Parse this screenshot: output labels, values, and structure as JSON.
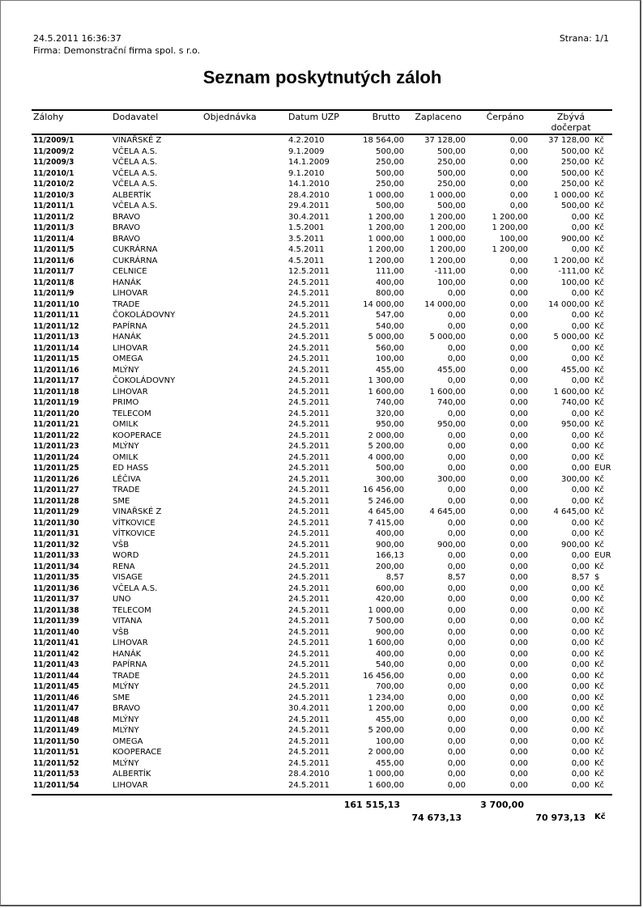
{
  "header": {
    "datetime": "24.5.2011  16:36:37",
    "company": "Firma: Demonstrační firma spol. s r.o.",
    "page": "Strana: 1/1"
  },
  "title": "Seznam poskytnutých záloh",
  "columns": {
    "zalohy": "Zálohy",
    "dodavatel": "Dodavatel",
    "objednavka": "Objednávka",
    "datum": "Datum UZP",
    "brutto": "Brutto",
    "zaplaceno": "Zaplaceno",
    "cerpano": "Čerpáno",
    "zbyva_1": "Zbývá",
    "zbyva_2": "dočerpat"
  },
  "rows": [
    [
      "11/2009/1",
      "VINAŘSKÉ Z",
      "4.2.2010",
      "18 564,00",
      "37 128,00",
      "0,00",
      "37 128,00",
      "Kč"
    ],
    [
      "11/2009/2",
      "VČELA A.S.",
      "9.1.2009",
      "500,00",
      "500,00",
      "0,00",
      "500,00",
      "Kč"
    ],
    [
      "11/2009/3",
      "VČELA A.S.",
      "14.1.2009",
      "250,00",
      "250,00",
      "0,00",
      "250,00",
      "Kč"
    ],
    [
      "11/2010/1",
      "VČELA A.S.",
      "9.1.2010",
      "500,00",
      "500,00",
      "0,00",
      "500,00",
      "Kč"
    ],
    [
      "11/2010/2",
      "VČELA A.S.",
      "14.1.2010",
      "250,00",
      "250,00",
      "0,00",
      "250,00",
      "Kč"
    ],
    [
      "11/2010/3",
      "ALBERTÍK",
      "28.4.2010",
      "1 000,00",
      "1 000,00",
      "0,00",
      "1 000,00",
      "Kč"
    ],
    [
      "11/2011/1",
      "VČELA A.S.",
      "29.4.2011",
      "500,00",
      "500,00",
      "0,00",
      "500,00",
      "Kč"
    ],
    [
      "11/2011/2",
      "BRAVO",
      "30.4.2011",
      "1 200,00",
      "1 200,00",
      "1 200,00",
      "0,00",
      "Kč"
    ],
    [
      "11/2011/3",
      "BRAVO",
      "1.5.2001",
      "1 200,00",
      "1 200,00",
      "1 200,00",
      "0,00",
      "Kč"
    ],
    [
      "11/2011/4",
      "BRAVO",
      "3.5.2011",
      "1 000,00",
      "1 000,00",
      "100,00",
      "900,00",
      "Kč"
    ],
    [
      "11/2011/5",
      "CUKRÁRNA",
      "4.5.2011",
      "1 200,00",
      "1 200,00",
      "1 200,00",
      "0,00",
      "Kč"
    ],
    [
      "11/2011/6",
      "CUKRÁRNA",
      "4.5.2011",
      "1 200,00",
      "1 200,00",
      "0,00",
      "1 200,00",
      "Kč"
    ],
    [
      "11/2011/7",
      "CELNICE",
      "12.5.2011",
      "111,00",
      "-111,00",
      "0,00",
      "-111,00",
      "Kč"
    ],
    [
      "11/2011/8",
      "HANÁK",
      "24.5.2011",
      "400,00",
      "100,00",
      "0,00",
      "100,00",
      "Kč"
    ],
    [
      "11/2011/9",
      "LIHOVAR",
      "24.5.2011",
      "800,00",
      "0,00",
      "0,00",
      "0,00",
      "Kč"
    ],
    [
      "11/2011/10",
      "TRADE",
      "24.5.2011",
      "14 000,00",
      "14 000,00",
      "0,00",
      "14 000,00",
      "Kč"
    ],
    [
      "11/2011/11",
      "ČOKOLÁDOVNY",
      "24.5.2011",
      "547,00",
      "0,00",
      "0,00",
      "0,00",
      "Kč"
    ],
    [
      "11/2011/12",
      "PAPÍRNA",
      "24.5.2011",
      "540,00",
      "0,00",
      "0,00",
      "0,00",
      "Kč"
    ],
    [
      "11/2011/13",
      "HANÁK",
      "24.5.2011",
      "5 000,00",
      "5 000,00",
      "0,00",
      "5 000,00",
      "Kč"
    ],
    [
      "11/2011/14",
      "LIHOVAR",
      "24.5.2011",
      "560,00",
      "0,00",
      "0,00",
      "0,00",
      "Kč"
    ],
    [
      "11/2011/15",
      "OMEGA",
      "24.5.2011",
      "100,00",
      "0,00",
      "0,00",
      "0,00",
      "Kč"
    ],
    [
      "11/2011/16",
      "MLÝNY",
      "24.5.2011",
      "455,00",
      "455,00",
      "0,00",
      "455,00",
      "Kč"
    ],
    [
      "11/2011/17",
      "ČOKOLÁDOVNY",
      "24.5.2011",
      "1 300,00",
      "0,00",
      "0,00",
      "0,00",
      "Kč"
    ],
    [
      "11/2011/18",
      "LIHOVAR",
      "24.5.2011",
      "1 600,00",
      "1 600,00",
      "0,00",
      "1 600,00",
      "Kč"
    ],
    [
      "11/2011/19",
      "PRIMO",
      "24.5.2011",
      "740,00",
      "740,00",
      "0,00",
      "740,00",
      "Kč"
    ],
    [
      "11/2011/20",
      "TELECOM",
      "24.5.2011",
      "320,00",
      "0,00",
      "0,00",
      "0,00",
      "Kč"
    ],
    [
      "11/2011/21",
      "OMILK",
      "24.5.2011",
      "950,00",
      "950,00",
      "0,00",
      "950,00",
      "Kč"
    ],
    [
      "11/2011/22",
      "KOOPERACE",
      "24.5.2011",
      "2 000,00",
      "0,00",
      "0,00",
      "0,00",
      "Kč"
    ],
    [
      "11/2011/23",
      "MLÝNY",
      "24.5.2011",
      "5 200,00",
      "0,00",
      "0,00",
      "0,00",
      "Kč"
    ],
    [
      "11/2011/24",
      "OMILK",
      "24.5.2011",
      "4 000,00",
      "0,00",
      "0,00",
      "0,00",
      "Kč"
    ],
    [
      "11/2011/25",
      "ED HASS",
      "24.5.2011",
      "500,00",
      "0,00",
      "0,00",
      "0,00",
      "EUR"
    ],
    [
      "11/2011/26",
      "LÉČIVA",
      "24.5.2011",
      "300,00",
      "300,00",
      "0,00",
      "300,00",
      "Kč"
    ],
    [
      "11/2011/27",
      "TRADE",
      "24.5.2011",
      "16 456,00",
      "0,00",
      "0,00",
      "0,00",
      "Kč"
    ],
    [
      "11/2011/28",
      "SME",
      "24.5.2011",
      "5 246,00",
      "0,00",
      "0,00",
      "0,00",
      "Kč"
    ],
    [
      "11/2011/29",
      "VINAŘSKÉ Z",
      "24.5.2011",
      "4 645,00",
      "4 645,00",
      "0,00",
      "4 645,00",
      "Kč"
    ],
    [
      "11/2011/30",
      "VÍTKOVICE",
      "24.5.2011",
      "7 415,00",
      "0,00",
      "0,00",
      "0,00",
      "Kč"
    ],
    [
      "11/2011/31",
      "VÍTKOVICE",
      "24.5.2011",
      "400,00",
      "0,00",
      "0,00",
      "0,00",
      "Kč"
    ],
    [
      "11/2011/32",
      "VŠB",
      "24.5.2011",
      "900,00",
      "900,00",
      "0,00",
      "900,00",
      "Kč"
    ],
    [
      "11/2011/33",
      "WORD",
      "24.5.2011",
      "166,13",
      "0,00",
      "0,00",
      "0,00",
      "EUR"
    ],
    [
      "11/2011/34",
      "RENA",
      "24.5.2011",
      "200,00",
      "0,00",
      "0,00",
      "0,00",
      "Kč"
    ],
    [
      "11/2011/35",
      "VISAGE",
      "24.5.2011",
      "8,57",
      "8,57",
      "0,00",
      "8,57",
      "$"
    ],
    [
      "11/2011/36",
      "VČELA A.S.",
      "24.5.2011",
      "600,00",
      "0,00",
      "0,00",
      "0,00",
      "Kč"
    ],
    [
      "11/2011/37",
      "UNO",
      "24.5.2011",
      "420,00",
      "0,00",
      "0,00",
      "0,00",
      "Kč"
    ],
    [
      "11/2011/38",
      "TELECOM",
      "24.5.2011",
      "1 000,00",
      "0,00",
      "0,00",
      "0,00",
      "Kč"
    ],
    [
      "11/2011/39",
      "VITANA",
      "24.5.2011",
      "7 500,00",
      "0,00",
      "0,00",
      "0,00",
      "Kč"
    ],
    [
      "11/2011/40",
      "VŠB",
      "24.5.2011",
      "900,00",
      "0,00",
      "0,00",
      "0,00",
      "Kč"
    ],
    [
      "11/2011/41",
      "LIHOVAR",
      "24.5.2011",
      "1 600,00",
      "0,00",
      "0,00",
      "0,00",
      "Kč"
    ],
    [
      "11/2011/42",
      "HANÁK",
      "24.5.2011",
      "400,00",
      "0,00",
      "0,00",
      "0,00",
      "Kč"
    ],
    [
      "11/2011/43",
      "PAPÍRNA",
      "24.5.2011",
      "540,00",
      "0,00",
      "0,00",
      "0,00",
      "Kč"
    ],
    [
      "11/2011/44",
      "TRADE",
      "24.5.2011",
      "16 456,00",
      "0,00",
      "0,00",
      "0,00",
      "Kč"
    ],
    [
      "11/2011/45",
      "MLÝNY",
      "24.5.2011",
      "700,00",
      "0,00",
      "0,00",
      "0,00",
      "Kč"
    ],
    [
      "11/2011/46",
      "SME",
      "24.5.2011",
      "1 234,00",
      "0,00",
      "0,00",
      "0,00",
      "Kč"
    ],
    [
      "11/2011/47",
      "BRAVO",
      "30.4.2011",
      "1 200,00",
      "0,00",
      "0,00",
      "0,00",
      "Kč"
    ],
    [
      "11/2011/48",
      "MLÝNY",
      "24.5.2011",
      "455,00",
      "0,00",
      "0,00",
      "0,00",
      "Kč"
    ],
    [
      "11/2011/49",
      "MLÝNY",
      "24.5.2011",
      "5 200,00",
      "0,00",
      "0,00",
      "0,00",
      "Kč"
    ],
    [
      "11/2011/50",
      "OMEGA",
      "24.5.2011",
      "100,00",
      "0,00",
      "0,00",
      "0,00",
      "Kč"
    ],
    [
      "11/2011/51",
      "KOOPERACE",
      "24.5.2011",
      "2 000,00",
      "0,00",
      "0,00",
      "0,00",
      "Kč"
    ],
    [
      "11/2011/52",
      "MLÝNY",
      "24.5.2011",
      "455,00",
      "0,00",
      "0,00",
      "0,00",
      "Kč"
    ],
    [
      "11/2011/53",
      "ALBERTÍK",
      "28.4.2010",
      "1 000,00",
      "0,00",
      "0,00",
      "0,00",
      "Kč"
    ],
    [
      "11/2011/54",
      "LIHOVAR",
      "24.5.2011",
      "1 600,00",
      "0,00",
      "0,00",
      "0,00",
      "Kč"
    ]
  ],
  "totals": {
    "brutto": "161 515,13",
    "cerpano": "3 700,00",
    "zaplaceno": "74 673,13",
    "zbyva": "70 973,13",
    "currency": "Kč"
  }
}
